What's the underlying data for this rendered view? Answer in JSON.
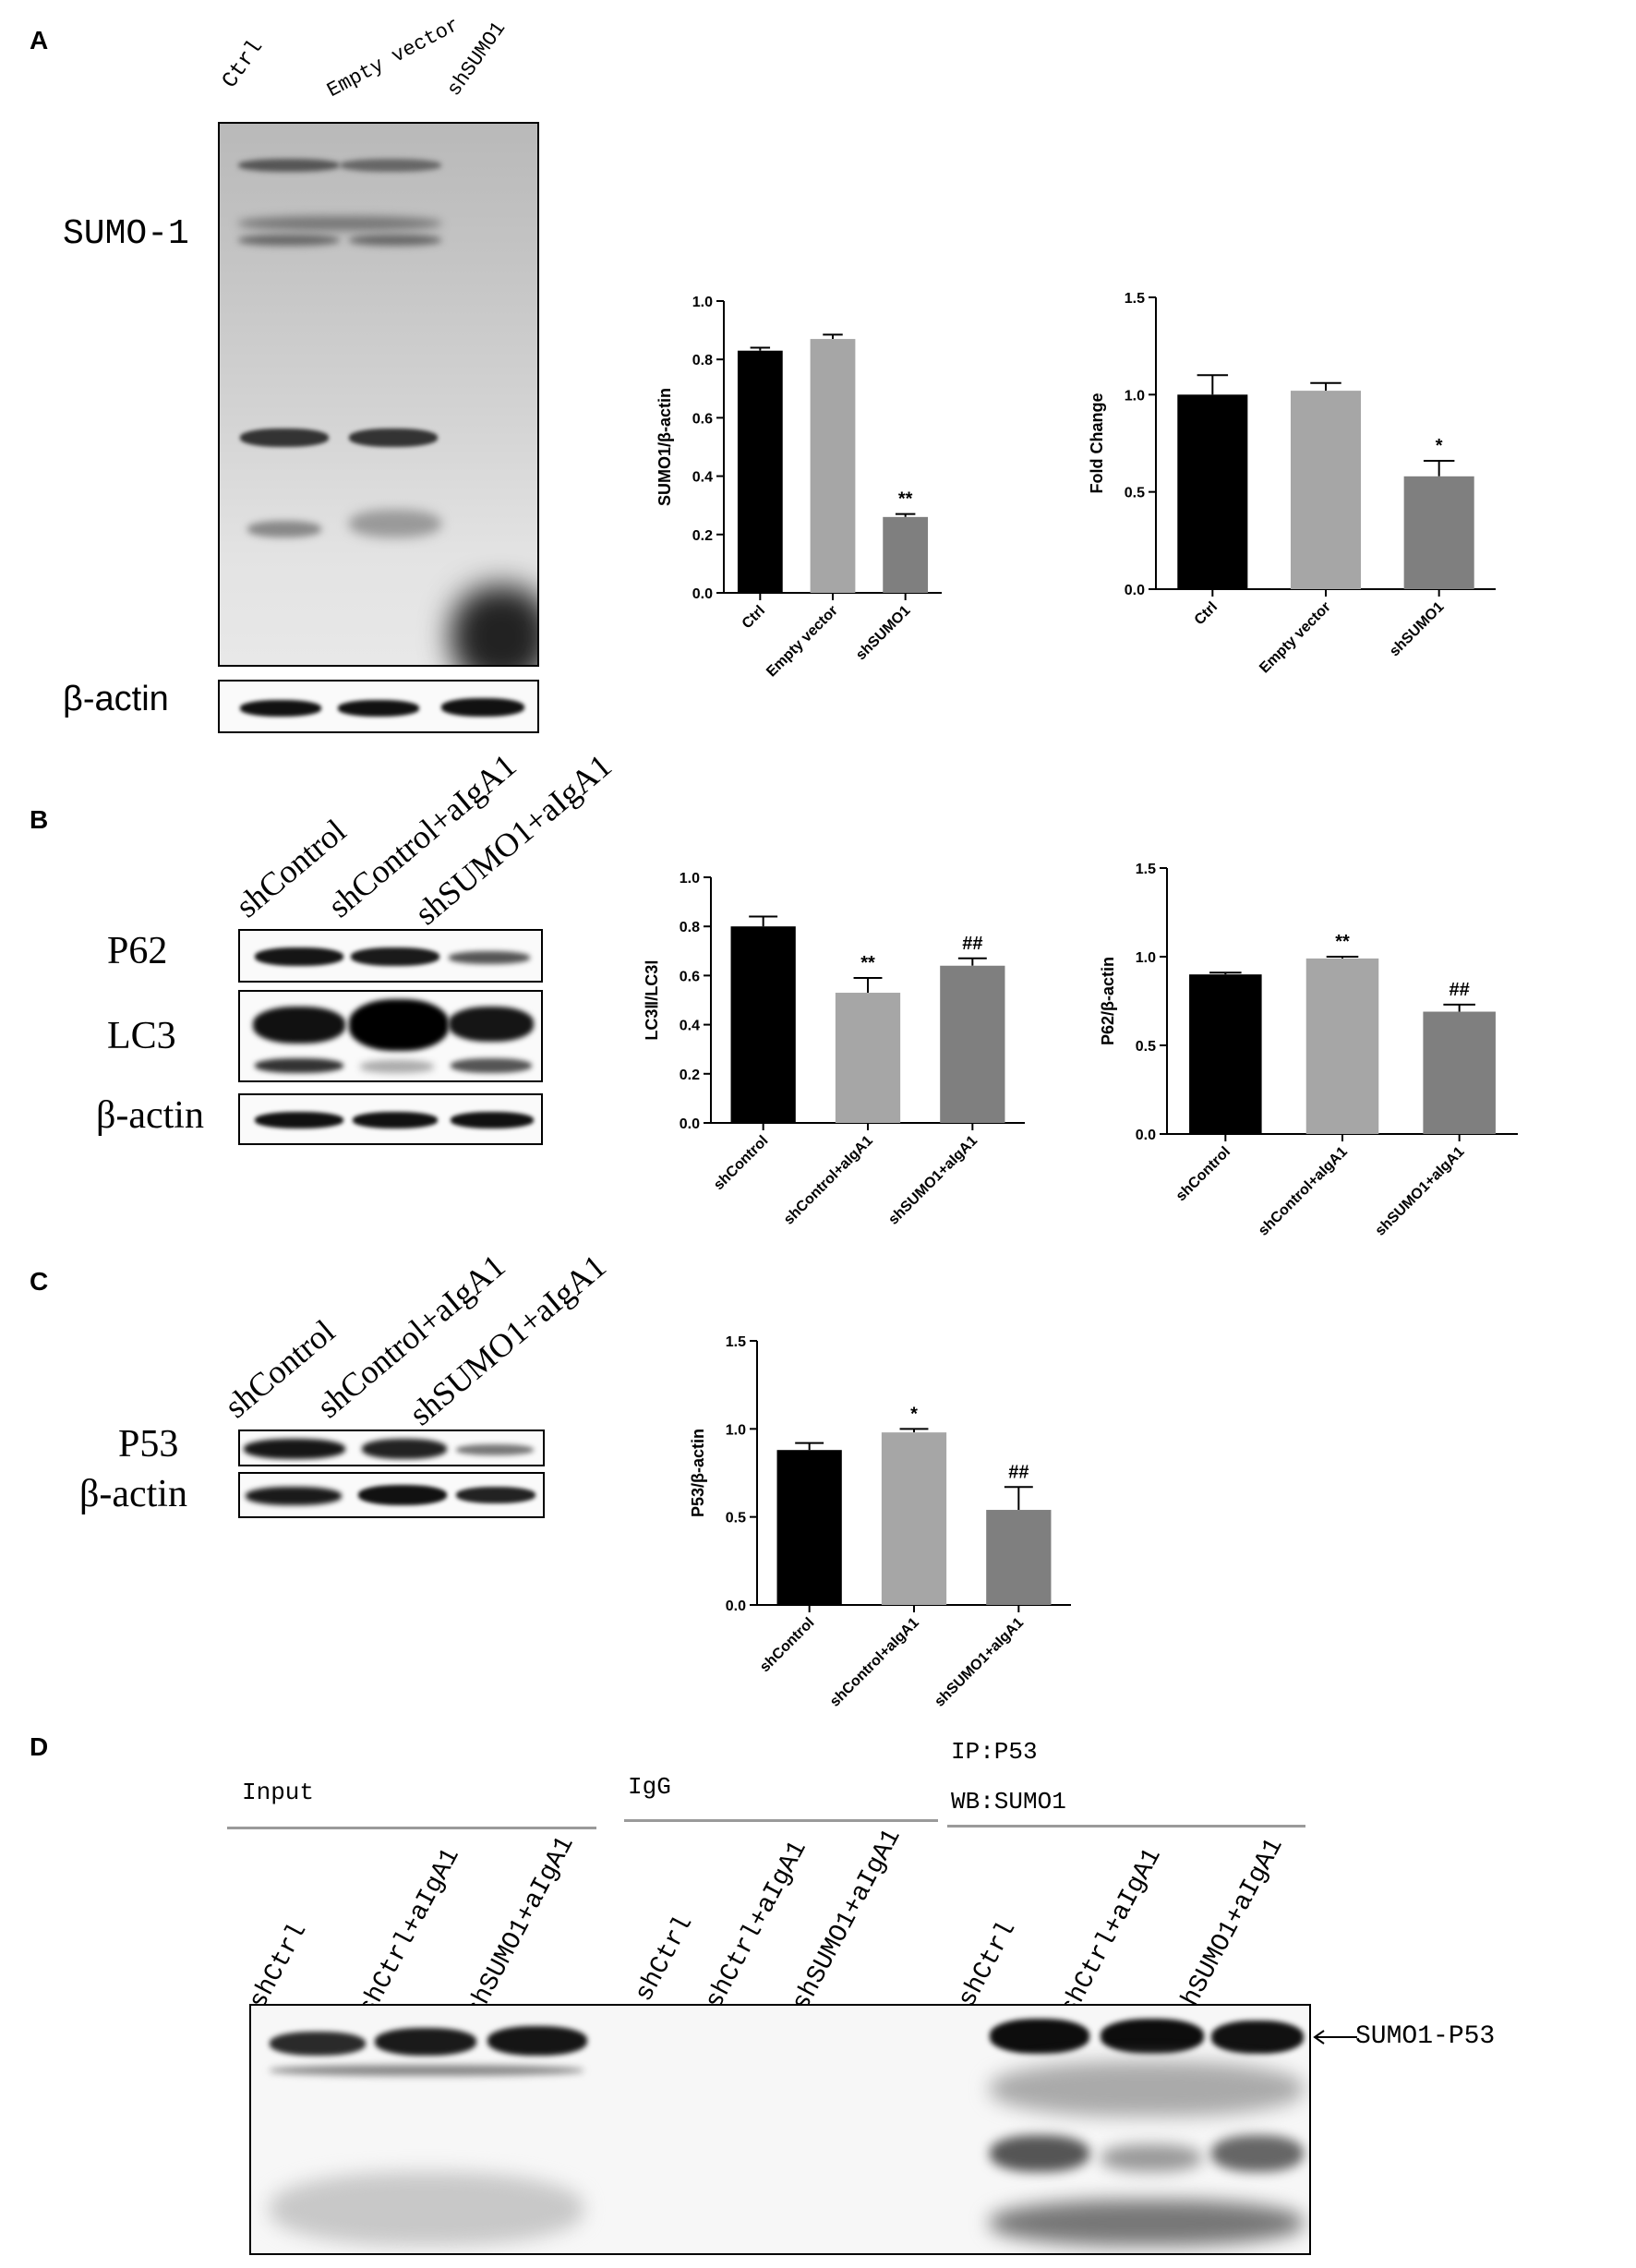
{
  "panels": {
    "A": {
      "label": "A",
      "lanes": [
        "Ctrl",
        "Empty vector",
        "shSUMO1"
      ],
      "rows": [
        "SUMO-1",
        "β-actin"
      ]
    },
    "B": {
      "label": "B",
      "lanes": [
        "shControl",
        "shControl+aIgA1",
        "shSUMO1+aIgA1"
      ],
      "rows": [
        "P62",
        "LC3",
        "β-actin"
      ]
    },
    "C": {
      "label": "C",
      "lanes": [
        "shControl",
        "shControl+aIgA1",
        "shSUMO1+aIgA1"
      ],
      "rows": [
        "P53",
        "β-actin"
      ]
    },
    "D": {
      "label": "D",
      "groups": [
        "Input",
        "IgG",
        "IP:P53",
        "WB:SUMO1"
      ],
      "lanes": [
        "shCtrl",
        "shCtrl+aIgA1",
        "shSUMO1+aIgA1",
        "shCtrl",
        "shCtrl+aIgA1",
        "shSUMO1+aIgA1",
        "shCtrl",
        "shCtrl+aIgA1",
        "shSUMO1+aIgA1"
      ],
      "arrow_label": "SUMO1-P53"
    }
  },
  "chart_data": [
    {
      "type": "bar",
      "panel": "A",
      "ylabel": "SUMO1/β-actin",
      "ylim": [
        0,
        1.0
      ],
      "yticks": [
        "0.0",
        "0.2",
        "0.4",
        "0.6",
        "0.8",
        "1.0"
      ],
      "categories": [
        "Ctrl",
        "Empty vector",
        "shSUMO1"
      ],
      "values": [
        0.83,
        0.87,
        0.26
      ],
      "errors": [
        0.01,
        0.015,
        0.01
      ],
      "annotations": [
        "",
        "",
        "**"
      ],
      "colors": [
        "#000000",
        "#a6a6a6",
        "#7f7f7f"
      ]
    },
    {
      "type": "bar",
      "panel": "A",
      "ylabel": "Fold Change",
      "ylim": [
        0,
        1.5
      ],
      "yticks": [
        "0.0",
        "0.5",
        "1.0",
        "1.5"
      ],
      "categories": [
        "Ctrl",
        "Empty vector",
        "shSUMO1"
      ],
      "values": [
        1.0,
        1.02,
        0.58
      ],
      "errors": [
        0.1,
        0.04,
        0.08
      ],
      "annotations": [
        "",
        "",
        "*"
      ],
      "colors": [
        "#000000",
        "#a6a6a6",
        "#7f7f7f"
      ]
    },
    {
      "type": "bar",
      "panel": "B",
      "ylabel": "LC3Ⅱ/LC3Ⅰ",
      "ylim": [
        0,
        1.0
      ],
      "yticks": [
        "0.0",
        "0.2",
        "0.4",
        "0.6",
        "0.8",
        "1.0"
      ],
      "categories": [
        "shControl",
        "shControl+aIgA1",
        "shSUMO1+aIgA1"
      ],
      "values": [
        0.8,
        0.53,
        0.64
      ],
      "errors": [
        0.04,
        0.06,
        0.03
      ],
      "annotations": [
        "",
        "**",
        "##"
      ],
      "colors": [
        "#000000",
        "#a6a6a6",
        "#7f7f7f"
      ]
    },
    {
      "type": "bar",
      "panel": "B",
      "ylabel": "P62/β-actin",
      "ylim": [
        0,
        1.5
      ],
      "yticks": [
        "0.0",
        "0.5",
        "1.0",
        "1.5"
      ],
      "categories": [
        "shControl",
        "shControl+aIgA1",
        "shSUMO1+aIgA1"
      ],
      "values": [
        0.9,
        0.99,
        0.69
      ],
      "errors": [
        0.01,
        0.01,
        0.04
      ],
      "annotations": [
        "",
        "**",
        "##"
      ],
      "colors": [
        "#000000",
        "#a6a6a6",
        "#7f7f7f"
      ]
    },
    {
      "type": "bar",
      "panel": "C",
      "ylabel": "P53/β-actin",
      "ylim": [
        0,
        1.5
      ],
      "yticks": [
        "0.0",
        "0.5",
        "1.0",
        "1.5"
      ],
      "categories": [
        "shControl",
        "shControl+aIgA1",
        "shSUMO1+aIgA1"
      ],
      "values": [
        0.88,
        0.98,
        0.54
      ],
      "errors": [
        0.04,
        0.02,
        0.13
      ],
      "annotations": [
        "",
        "*",
        "##"
      ],
      "colors": [
        "#000000",
        "#a6a6a6",
        "#7f7f7f"
      ]
    }
  ]
}
